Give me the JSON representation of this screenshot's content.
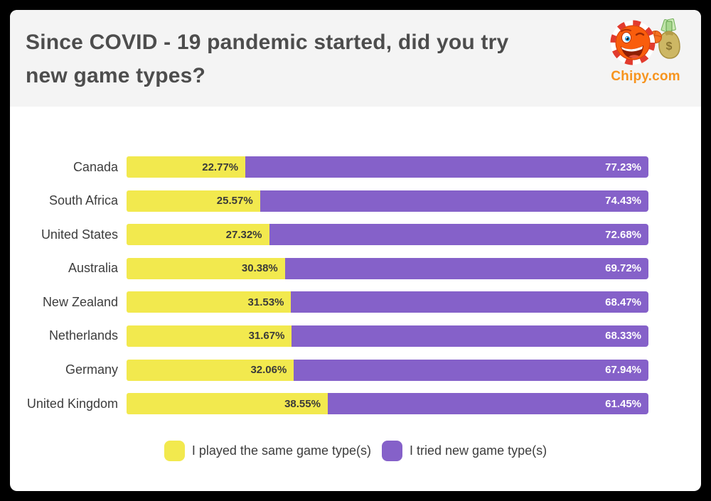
{
  "page": {
    "outer_background": "#000000",
    "card_background": "#ffffff",
    "header_background": "#f4f4f4"
  },
  "header": {
    "title_lines": [
      "Since COVID - 19 pandemic started, did you try",
      "new game types?"
    ],
    "logo": {
      "text": "Chipy.com",
      "color": "#f7941e",
      "icon": "chipy-chip-mascot-with-money-bag"
    }
  },
  "chart_data": {
    "type": "bar",
    "orientation": "horizontal",
    "stacked": true,
    "title": "Since COVID - 19 pandemic started, did you try new game types?",
    "categories": [
      "Canada",
      "South Africa",
      "United States",
      "Australia",
      "New Zealand",
      "Netherlands",
      "Germany",
      "United Kingdom"
    ],
    "series": [
      {
        "name": "I played the same game type(s)",
        "color": "#f2e94e",
        "label_color": "#3a3a3a",
        "values": [
          22.77,
          25.57,
          27.32,
          30.38,
          31.53,
          31.67,
          32.06,
          38.55
        ],
        "labels": [
          "22.77%",
          "25.57%",
          "27.32%",
          "30.38%",
          "31.53%",
          "31.67%",
          "32.06%",
          "38.55%"
        ]
      },
      {
        "name": "I tried new game type(s)",
        "color": "#8561c9",
        "label_color": "#ffffff",
        "values": [
          77.23,
          74.43,
          72.68,
          69.72,
          68.47,
          68.33,
          67.94,
          61.45
        ],
        "labels": [
          "77.23%",
          "74.43%",
          "72.68%",
          "69.72%",
          "68.47%",
          "68.33%",
          "67.94%",
          "61.45%"
        ]
      }
    ],
    "xlim": [
      0,
      100
    ],
    "grid": false,
    "legend_position": "bottom"
  },
  "legend": {
    "items": [
      {
        "label": "I played the same game type(s)",
        "color": "#f2e94e"
      },
      {
        "label": "I tried new game type(s)",
        "color": "#8561c9"
      }
    ]
  }
}
